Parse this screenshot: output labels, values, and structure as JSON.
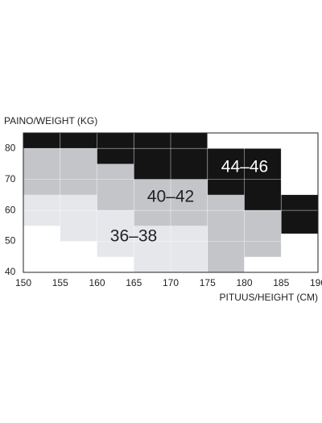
{
  "chart_data": {
    "type": "region",
    "ylabel": "PAINO/WEIGHT (KG)",
    "xlabel": "PITUUS/HEIGHT (CM)",
    "xlim": [
      150,
      190
    ],
    "ylim": [
      40,
      85
    ],
    "xticks": [
      150,
      155,
      160,
      165,
      170,
      175,
      180,
      185,
      190
    ],
    "yticks": [
      40,
      50,
      60,
      70,
      80
    ],
    "grid": true,
    "series": [
      {
        "name": "44–46",
        "color": "#141414",
        "regions": [
          [
            150,
            155,
            80,
            85
          ],
          [
            155,
            160,
            80,
            85
          ],
          [
            160,
            165,
            75,
            85
          ],
          [
            165,
            170,
            70,
            85
          ],
          [
            170,
            175,
            70,
            85
          ],
          [
            175,
            180,
            65,
            80
          ],
          [
            180,
            185,
            60,
            80
          ],
          [
            185,
            190,
            52.5,
            65
          ]
        ]
      },
      {
        "name": "40–42",
        "color": "#c3c5c9",
        "regions": [
          [
            150,
            155,
            65,
            80
          ],
          [
            155,
            160,
            65,
            80
          ],
          [
            160,
            165,
            60,
            75
          ],
          [
            165,
            170,
            55,
            70
          ],
          [
            170,
            175,
            55,
            70
          ],
          [
            175,
            180,
            40,
            65
          ],
          [
            180,
            185,
            45,
            60
          ]
        ]
      },
      {
        "name": "36–38",
        "color": "#e5e7eb",
        "regions": [
          [
            150,
            155,
            55,
            65
          ],
          [
            155,
            160,
            50,
            65
          ],
          [
            160,
            165,
            45,
            60
          ],
          [
            165,
            170,
            40,
            55
          ],
          [
            170,
            175,
            40,
            55
          ]
        ]
      }
    ]
  }
}
